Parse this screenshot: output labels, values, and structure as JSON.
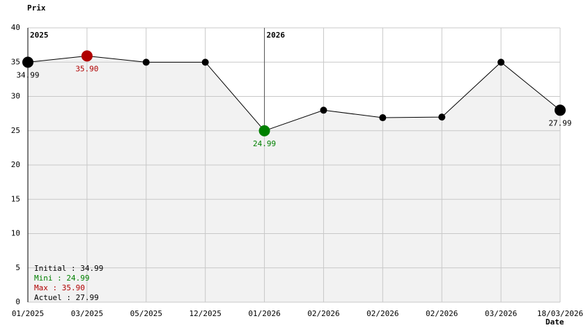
{
  "chart_data": {
    "type": "line",
    "ylabel": "Prix",
    "xlabel": "Date",
    "categories": [
      "01/2025",
      "03/2025",
      "05/2025",
      "12/2025",
      "01/2026",
      "02/2026",
      "02/2026",
      "02/2026",
      "03/2026",
      "18/03/2026"
    ],
    "year_marks": [
      "2025",
      null,
      null,
      null,
      "2026",
      null,
      null,
      null,
      null,
      null
    ],
    "series": [
      {
        "color": "#000000",
        "values": [
          34.99,
          35.9,
          34.99,
          34.99,
          24.99,
          27.99,
          26.9,
          26.99,
          34.99,
          27.99
        ],
        "value_labels": [
          "34.99",
          "35.90",
          null,
          null,
          "24.99",
          null,
          null,
          null,
          null,
          "27.99"
        ],
        "marker_colors": [
          "#000000",
          "#b00000",
          "#000000",
          "#000000",
          "#008000",
          "#000000",
          "#000000",
          "#000000",
          "#000000",
          "#000000"
        ]
      }
    ],
    "fill_color": "#f2f2f2",
    "ylim": [
      0,
      40
    ],
    "yticks": [
      0,
      5,
      10,
      15,
      20,
      25,
      30,
      35,
      40
    ],
    "grid": true,
    "summary": [
      {
        "text": "Initial : 34.99",
        "color": "#000000"
      },
      {
        "text": "Mini : 24.99",
        "color": "#008000"
      },
      {
        "text": "Max : 35.90",
        "color": "#b00000"
      },
      {
        "text": "Actuel : 27.99",
        "color": "#000000"
      }
    ]
  }
}
